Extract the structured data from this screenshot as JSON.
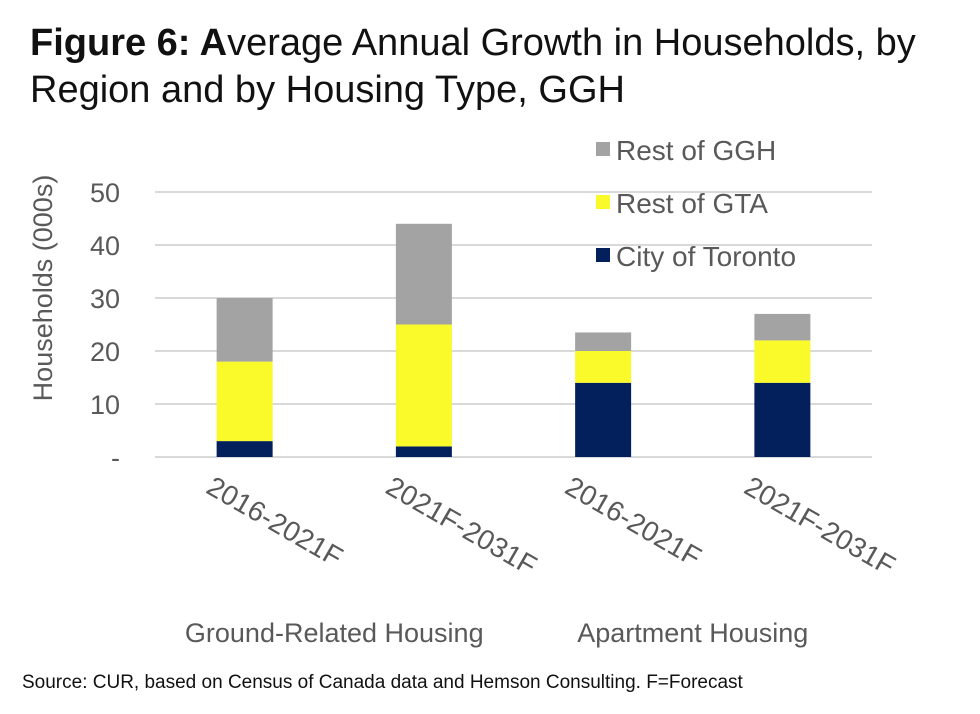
{
  "title": {
    "prefix": "Figure 6: A",
    "rest": "verage Annual Growth in Households, by Region and by Housing Type, GGH"
  },
  "source": "Source: CUR, based on Census of Canada data and Hemson Consulting. F=Forecast",
  "colors": {
    "rest_of_ggh": "#a3a3a3",
    "rest_of_gta": "#fafa2a",
    "city_of_toronto": "#04205c",
    "grid": "#d9d9d9",
    "text": "#595959"
  },
  "chart_data": {
    "type": "bar",
    "stacked": true,
    "categories": [
      "2016-2021F",
      "2021F-2031F",
      "2016-2021F",
      "2021F-2031F"
    ],
    "groups": [
      {
        "label": "Ground-Related Housing",
        "categories": [
          0,
          1
        ]
      },
      {
        "label": "Apartment Housing",
        "categories": [
          2,
          3
        ]
      }
    ],
    "series": [
      {
        "name": "City of Toronto",
        "values": [
          3,
          2,
          14,
          14
        ]
      },
      {
        "name": "Rest of GTA",
        "values": [
          15,
          23,
          6,
          8
        ]
      },
      {
        "name": "Rest of GGH",
        "values": [
          12,
          19,
          3.5,
          5
        ]
      }
    ],
    "ylabel": "Households (000s)",
    "ylim": [
      0,
      50
    ],
    "yticks": [
      0,
      10,
      20,
      30,
      40,
      50
    ],
    "ytick_labels": [
      "-",
      "10",
      "20",
      "30",
      "40",
      "50"
    ],
    "legend": {
      "position": "top-right",
      "order": [
        "Rest of GGH",
        "Rest of GTA",
        "City of Toronto"
      ]
    },
    "grid": true
  }
}
